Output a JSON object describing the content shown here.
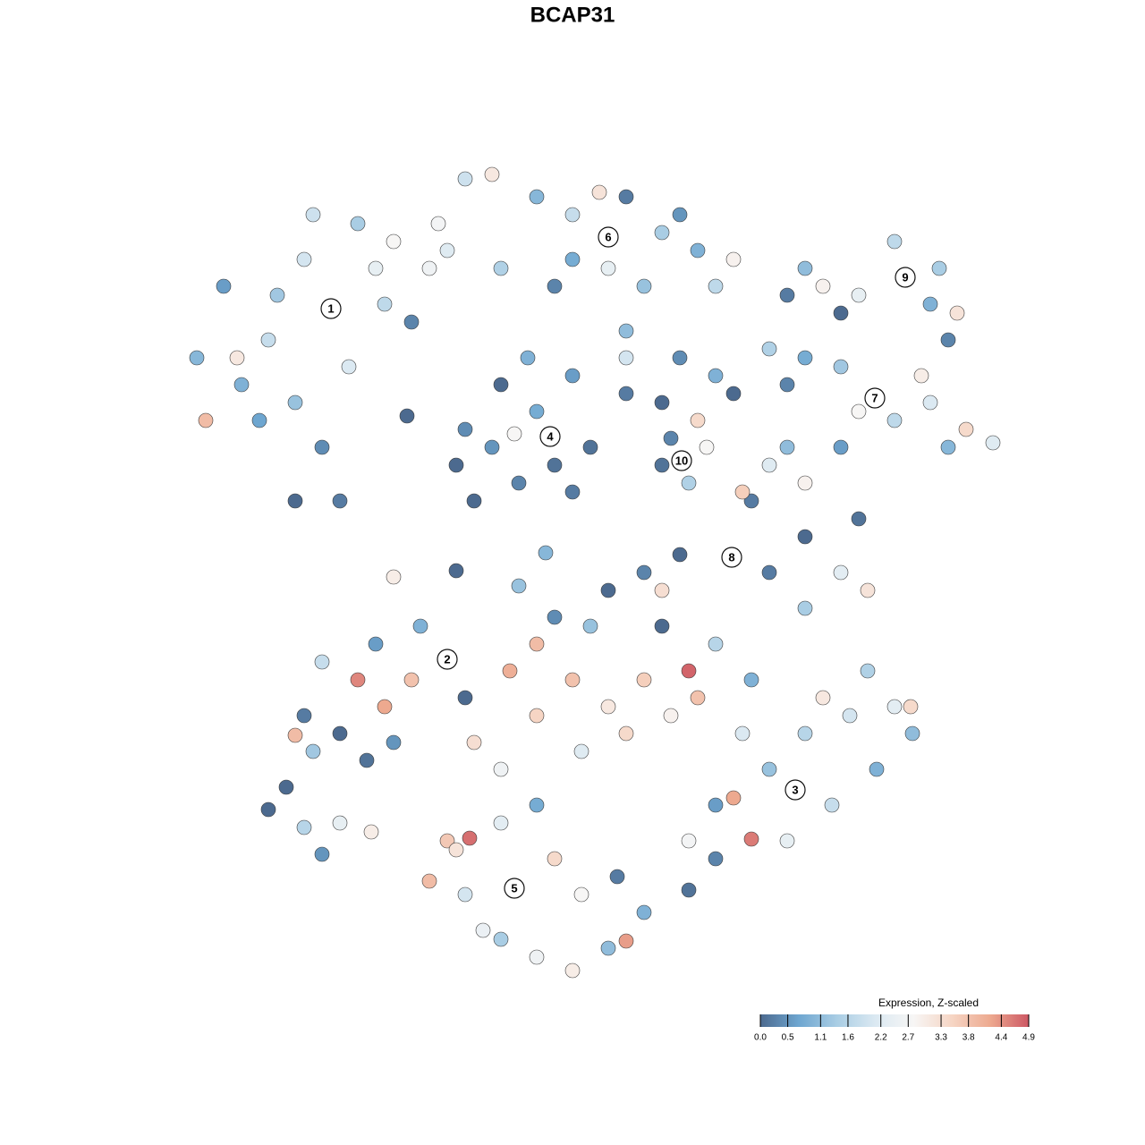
{
  "chart_data": {
    "type": "scatter",
    "title": "BCAP31",
    "x": [
      -27,
      -39,
      -42,
      -34,
      -30,
      -22,
      -24,
      -20,
      -31,
      -28,
      -31,
      -35,
      -25,
      -21,
      -18,
      -37,
      -41,
      -26,
      -29,
      -37.5,
      -16,
      -33,
      4,
      -12,
      -9,
      -4,
      0,
      6,
      10,
      14,
      18,
      -14,
      -8,
      -2,
      4,
      8,
      12,
      -15,
      0,
      3,
      16,
      6,
      6,
      -2.5,
      -12,
      -8,
      0,
      2,
      -6,
      -11,
      -4,
      0,
      -9,
      -5,
      -2,
      -6.5,
      -13,
      -18.5,
      6,
      10,
      16,
      12,
      18,
      12.2,
      11,
      15,
      13,
      10,
      14,
      37.2,
      32,
      26,
      24,
      41,
      40,
      43,
      36,
      30,
      28,
      42,
      33.8,
      26,
      24,
      30,
      36,
      40,
      44,
      47,
      39,
      32,
      42,
      22,
      17.8,
      22,
      24,
      20,
      26,
      30,
      32,
      26,
      30,
      33,
      26,
      12,
      8,
      4,
      10,
      22,
      19,
      -20,
      -13,
      -3,
      -6,
      -14,
      -24,
      -28,
      -22,
      -17,
      -30,
      -26,
      -31,
      -21,
      -23,
      -18,
      -29,
      -12,
      -20,
      -34,
      -30,
      -26,
      -22.5,
      -28,
      -32,
      -6.5,
      -11.5,
      -14,
      -16,
      -12,
      -8,
      -4,
      0,
      4,
      6,
      8,
      1,
      -2,
      -8,
      -4,
      5,
      -10,
      -13,
      -4,
      0,
      4,
      8,
      13,
      -7,
      -2,
      2,
      10,
      16,
      6,
      11,
      -8,
      1,
      -4,
      -11,
      18,
      14,
      20,
      24.9,
      20,
      26,
      31,
      36,
      37.8,
      34,
      29,
      24,
      16,
      16,
      22,
      33,
      28,
      13,
      19,
      38,
      13
    ],
    "y": [
      29.5,
      32,
      24,
      26,
      35,
      34,
      39,
      37,
      19,
      14,
      8,
      17,
      23,
      30,
      28,
      21,
      17,
      8,
      40,
      24,
      34,
      31,
      37.5,
      44,
      44.5,
      42,
      40,
      42,
      38,
      36,
      35,
      36,
      34,
      32,
      34,
      32,
      40,
      39,
      35,
      42.5,
      32,
      27,
      24,
      15,
      16,
      21,
      22,
      14,
      10,
      8,
      18,
      9,
      14,
      24,
      12,
      15.5,
      12,
      17.5,
      20,
      19,
      22,
      24,
      20,
      12.5,
      15,
      14,
      10,
      12,
      17,
      33,
      31,
      34,
      31,
      34,
      30,
      29,
      37,
      29,
      32,
      26,
      19.5,
      24,
      21,
      23,
      17,
      19,
      16,
      14.5,
      22,
      18,
      14,
      25,
      1.7,
      12,
      14,
      8,
      10,
      14,
      6,
      4,
      0,
      -2,
      -4,
      2,
      0,
      -2,
      -2,
      0,
      9,
      -0.5,
      0.2,
      2.2,
      -1.5,
      -9.7,
      -12,
      -10,
      -8,
      -6,
      -16,
      -18,
      -18.2,
      -15,
      -21,
      -12,
      -20,
      -14,
      -19,
      -26.5,
      -28.5,
      -28,
      -29,
      -31.5,
      -24,
      -35.3,
      -29.7,
      -30,
      -34.5,
      -36,
      -41,
      -43,
      -44.5,
      -42,
      -41.2,
      -38,
      -36,
      -32,
      -28,
      -26,
      -34,
      -40,
      -31,
      -16,
      -12,
      -15,
      -12,
      -11,
      -11,
      -5,
      -6,
      -6,
      -8,
      -18,
      -16,
      -22,
      -20,
      -8,
      -19,
      -25.2,
      -14,
      -12,
      -24.3,
      -29.8,
      -18,
      -16,
      -15,
      -15,
      -22,
      -26,
      -30,
      -26,
      -32,
      -22,
      -11,
      -14,
      -30,
      -18,
      -18,
      -35.5
    ],
    "values": [
      1.5,
      0.6,
      1.0,
      1.8,
      2.0,
      2.4,
      1.4,
      2.8,
      1.2,
      0.4,
      0.0,
      0.7,
      2.1,
      1.7,
      0.3,
      0.9,
      3.9,
      0.2,
      1.9,
      3.1,
      2.6,
      1.3,
      1.6,
      1.9,
      3.1,
      1.0,
      1.8,
      0.2,
      1.4,
      0.9,
      2.9,
      2.2,
      1.5,
      0.3,
      2.4,
      1.2,
      0.5,
      2.7,
      0.8,
      3.2,
      1.7,
      1.1,
      2.0,
      0.2,
      0.4,
      0.0,
      0.6,
      0.1,
      0.3,
      0.0,
      0.8,
      0.2,
      0.5,
      0.9,
      0.1,
      2.8,
      0.0,
      0.0,
      0.2,
      0.0,
      0.9,
      0.4,
      0.0,
      1.0,
      0.3,
      2.8,
      1.5,
      0.1,
      3.4,
      1.9,
      2.4,
      1.1,
      0.2,
      1.4,
      0.9,
      3.2,
      1.7,
      0.0,
      2.9,
      0.3,
      2.4,
      0.8,
      0.3,
      1.3,
      1.7,
      2.1,
      3.4,
      2.2,
      3.0,
      2.8,
      1.0,
      1.5,
      0.4,
      2.2,
      1.1,
      0.2,
      2.9,
      0.6,
      0.1,
      0.0,
      2.3,
      3.2,
      1.4,
      0.0,
      0.3,
      0.0,
      3.3,
      0.2,
      3.6,
      3.0,
      0.0,
      1.0,
      1.2,
      1.0,
      4.5,
      1.8,
      0.6,
      0.9,
      0.2,
      0.0,
      3.9,
      4.2,
      0.1,
      3.8,
      1.3,
      0.0,
      0.5,
      0.0,
      1.6,
      2.4,
      3.0,
      0.5,
      0.0,
      1.9,
      4.7,
      3.7,
      3.9,
      2.0,
      1.4,
      2.6,
      3.0,
      1.1,
      4.3,
      0.9,
      2.8,
      3.4,
      2.3,
      0.8,
      0.2,
      2.5,
      3.2,
      3.5,
      3.8,
      3.1,
      3.6,
      4.8,
      4.1,
      0.4,
      1.2,
      0.0,
      1.6,
      3.4,
      2.9,
      2.6,
      2.2,
      3.9,
      3.3,
      4.2,
      3.8,
      0.9,
      2.6,
      4.6,
      1.6,
      2.0,
      2.3,
      3.4,
      0.9,
      1.8,
      2.4,
      0.6,
      0.3,
      1.2,
      1.5,
      3.1,
      2.7,
      2.1,
      1.1,
      0.1
    ],
    "xlim": [
      -48,
      52
    ],
    "ylim": [
      -48,
      48
    ],
    "clusters": [
      {
        "label": "1",
        "x": -27,
        "y": 29.5
      },
      {
        "label": "6",
        "x": 4,
        "y": 37.5
      },
      {
        "label": "9",
        "x": 37.2,
        "y": 33
      },
      {
        "label": "7",
        "x": 33.8,
        "y": 19.5
      },
      {
        "label": "4",
        "x": -2.5,
        "y": 15.2
      },
      {
        "label": "10",
        "x": 12.2,
        "y": 12.5
      },
      {
        "label": "8",
        "x": 17.8,
        "y": 1.7
      },
      {
        "label": "2",
        "x": -14,
        "y": -9.7
      },
      {
        "label": "3",
        "x": 24.9,
        "y": -24.3
      },
      {
        "label": "5",
        "x": -6.5,
        "y": -35.3
      }
    ],
    "colorbar": {
      "title": "Expression, Z-scaled",
      "clim": [
        0,
        4.9
      ],
      "colormap": [
        "#4c6a8f",
        "#6ea6d0",
        "#a9cde4",
        "#dbe9f2",
        "#f7f6f5",
        "#f6d5c4",
        "#eda98f",
        "#cd5864"
      ],
      "ticks": [
        {
          "value": 0,
          "label": "0.0"
        },
        0.5,
        1.1,
        1.6,
        2.2,
        2.7,
        3.3,
        3.8,
        4.4,
        4.9
      ]
    }
  }
}
